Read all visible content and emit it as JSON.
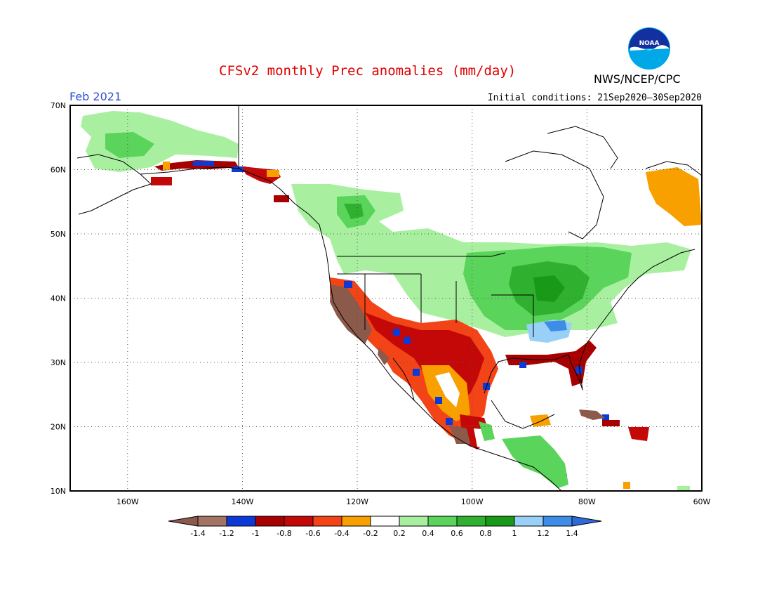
{
  "title": "CFSv2 monthly Prec anomalies (mm/day)",
  "agency": "NWS/NCEP/CPC",
  "logo_text": "NOAA",
  "month": "Feb 2021",
  "initial_conditions": "Initial conditions: 21Sep2020–30Sep2020",
  "map": {
    "lon_range": [
      -170,
      -60
    ],
    "lat_range": [
      10,
      70
    ],
    "lat_labels": [
      "70N",
      "60N",
      "50N",
      "40N",
      "30N",
      "20N",
      "10N"
    ],
    "lon_labels": [
      "160W",
      "140W",
      "120W",
      "100W",
      "80W",
      "60W"
    ],
    "grid_lons": [
      -160,
      -140,
      -120,
      -100,
      -80
    ],
    "grid_lats": [
      60,
      50,
      40,
      30,
      20
    ]
  },
  "colorbar": {
    "labels": [
      "-1.4",
      "-1.2",
      "-1",
      "-0.8",
      "-0.6",
      "-0.4",
      "-0.2",
      "0.2",
      "0.4",
      "0.6",
      "0.8",
      "1",
      "1.2",
      "1.4"
    ],
    "colors": [
      "#8b5a4a",
      "#a27463",
      "#0d3ad6",
      "#a80000",
      "#c40808",
      "#f24416",
      "#f7a000",
      "#ffffff",
      "#a8f0a0",
      "#5ad45a",
      "#2fb02f",
      "#189a18",
      "#99d0f8",
      "#3d8de8",
      "#2f6ad8"
    ]
  },
  "colors": {
    "brown": "#8b5a4a",
    "dark_red": "#a80000",
    "red": "#e02010",
    "orange_red": "#f24416",
    "orange": "#f7a000",
    "light_green": "#a8f0a0",
    "green": "#5ad45a",
    "dark_green": "#2fb02f",
    "deep_green": "#189a18",
    "light_blue": "#99d0f8",
    "blue": "#3d8de8",
    "dark_blue": "#0d3ad6"
  }
}
